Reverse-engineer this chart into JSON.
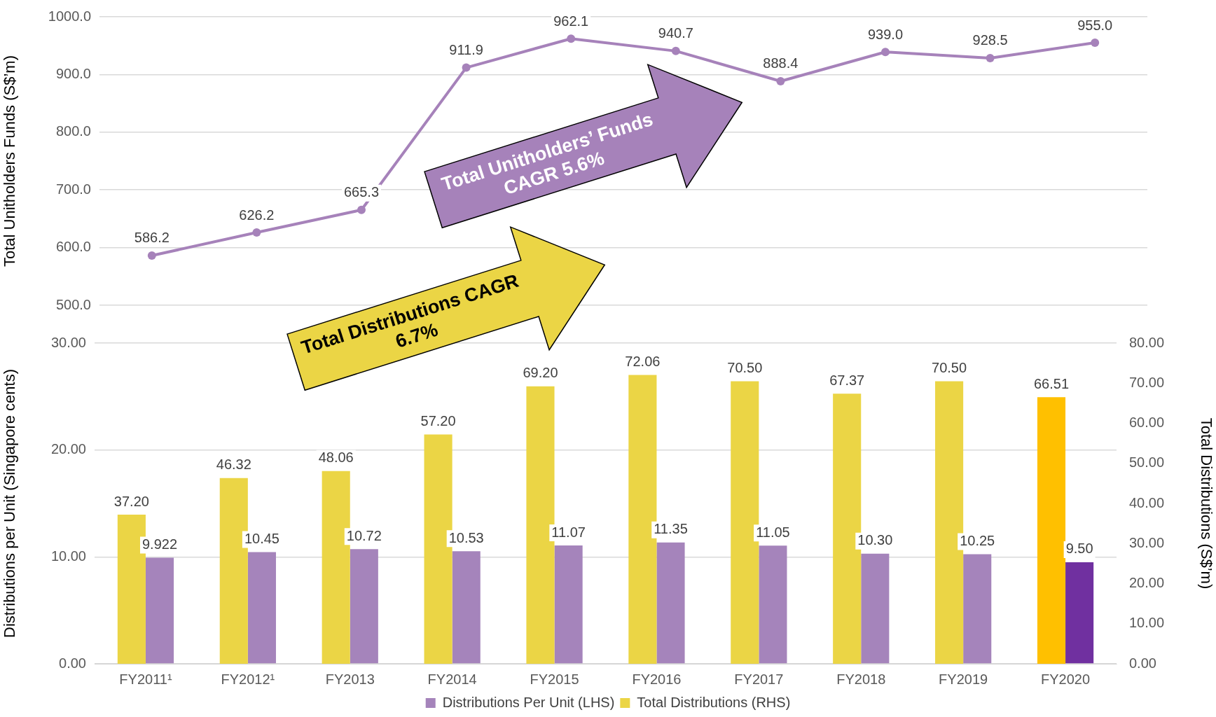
{
  "chart_data": [
    {
      "type": "line",
      "ylabel": "Total Unitholders Funds (S$’m)",
      "categories": [
        null,
        null,
        null,
        null,
        null,
        null,
        null,
        null,
        null,
        null
      ],
      "series": [
        {
          "color": "#a682ba",
          "values": [
            586.2,
            626.2,
            665.3,
            911.9,
            962.1,
            940.7,
            888.4,
            939.0,
            928.5,
            955.0
          ],
          "value_labels": [
            "586.2",
            "626.2",
            "665.3",
            "911.9",
            "962.1",
            "940.7",
            "888.4",
            "939.0",
            "928.5",
            "955.0"
          ]
        }
      ],
      "ylim": [
        500,
        1000
      ],
      "yticks": [
        {
          "value": 500,
          "label": "500.0"
        },
        {
          "value": 600,
          "label": "600.0"
        },
        {
          "value": 700,
          "label": "700.0"
        },
        {
          "value": 800,
          "label": "800.0"
        },
        {
          "value": 900,
          "label": "900.0"
        },
        {
          "value": 1000,
          "label": "1000.0"
        }
      ],
      "grid": "y",
      "tick_labels": "y",
      "marker": "circle",
      "annotations": [
        "Total Unitholders’ Funds CAGR  5.6%"
      ]
    },
    {
      "type": "bar",
      "ylabel": "Distributions per Unit (Singapore cents)",
      "y2label": "Total Distributions (S$’m)",
      "categories": [
        "FY2011¹",
        "FY2012¹",
        "FY2013",
        "FY2014",
        "FY2015",
        "FY2016",
        "FY2017",
        "FY2018",
        "FY2019",
        "FY2020"
      ],
      "series": [
        {
          "name": "Total Distributions (RHS)",
          "axis": "y2",
          "color": "#ebd545",
          "colors": [
            "#ebd545",
            "#ebd545",
            "#ebd545",
            "#ebd545",
            "#ebd545",
            "#ebd545",
            "#ebd545",
            "#ebd545",
            "#ebd545",
            "#ffc000"
          ],
          "values": [
            37.2,
            46.32,
            48.06,
            57.2,
            69.2,
            72.06,
            70.5,
            67.37,
            70.5,
            66.51
          ],
          "value_labels": [
            "37.20",
            "46.32",
            "48.06",
            "57.20",
            "69.20",
            "72.06",
            "70.50",
            "67.37",
            "70.50",
            "66.51"
          ]
        },
        {
          "name": "Distributions Per Unit (LHS)",
          "color": "#a584bb",
          "colors": [
            "#a584bb",
            "#a584bb",
            "#a584bb",
            "#a584bb",
            "#a584bb",
            "#a584bb",
            "#a584bb",
            "#a584bb",
            "#a584bb",
            "#7030a0"
          ],
          "values": [
            9.922,
            10.45,
            10.72,
            10.53,
            11.07,
            11.35,
            11.05,
            10.3,
            10.25,
            9.5
          ],
          "value_labels": [
            "9.922",
            "10.45",
            "10.72",
            "10.53",
            "11.07",
            "11.35",
            "11.05",
            "10.30",
            "10.25",
            "9.50"
          ]
        }
      ],
      "ylim": [
        0,
        30
      ],
      "yticks": [
        {
          "value": 0,
          "label": "0.00"
        },
        {
          "value": 10,
          "label": "10.00"
        },
        {
          "value": 20,
          "label": "20.00"
        },
        {
          "value": 30,
          "label": "30.00"
        }
      ],
      "y2lim": [
        0,
        80
      ],
      "y2ticks": [
        {
          "value": 0,
          "label": "0.00"
        },
        {
          "value": 10,
          "label": "10.00"
        },
        {
          "value": 20,
          "label": "20.00"
        },
        {
          "value": 30,
          "label": "30.00"
        },
        {
          "value": 40,
          "label": "40.00"
        },
        {
          "value": 50,
          "label": "50.00"
        },
        {
          "value": 60,
          "label": "60.00"
        },
        {
          "value": 70,
          "label": "70.00"
        },
        {
          "value": 80,
          "label": "80.00"
        }
      ],
      "grid": "y",
      "legend": "bottom",
      "annotations": [
        "Total Distributions CAGR  6.7%"
      ]
    }
  ]
}
